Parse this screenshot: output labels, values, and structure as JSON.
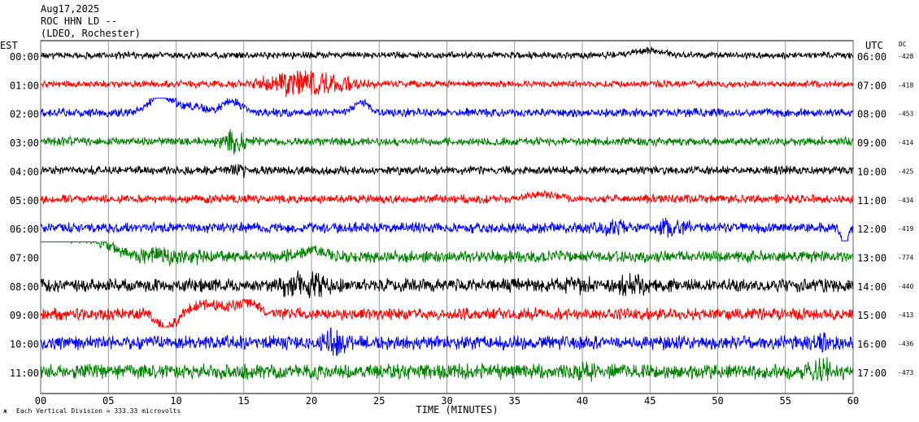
{
  "header": {
    "date": "Aug17,2025",
    "station": "ROC HHN LD --",
    "network": "(LDEO, Rochester)"
  },
  "left_zone": "EST",
  "right_zone": "UTC",
  "dc_header": "DC",
  "footer": {
    "scale_note": "Each Vertical Division =  333.33 microvolts",
    "corner_mark": "ж"
  },
  "chart_data": {
    "type": "line",
    "title": "",
    "xlabel": "TIME (MINUTES)",
    "ylabel": "",
    "xlim": [
      0,
      60
    ],
    "x_ticks": [
      "00",
      "05",
      "10",
      "15",
      "20",
      "25",
      "30",
      "35",
      "40",
      "45",
      "50",
      "55",
      "60"
    ],
    "grid": true,
    "colors": [
      "#000000",
      "#ff0000",
      "#0000ff",
      "#008000"
    ],
    "rows": [
      {
        "est": "00:00",
        "utc": "06:00",
        "dc": "-428",
        "color": "#000000",
        "noise": 4,
        "events": [
          {
            "t": 44.8,
            "amp": 6,
            "width": 1.5,
            "kind": "bump"
          }
        ]
      },
      {
        "est": "01:00",
        "utc": "07:00",
        "dc": "-418",
        "color": "#ff0000",
        "noise": 4,
        "events": [
          {
            "t": 19.5,
            "amp": 16,
            "width": 3.5,
            "kind": "burst"
          }
        ]
      },
      {
        "est": "02:00",
        "utc": "08:00",
        "dc": "-453",
        "color": "#0000ff",
        "noise": 5,
        "events": [
          {
            "t": 8.9,
            "amp": 22,
            "width": 1.2,
            "kind": "bump"
          },
          {
            "t": 11.2,
            "amp": 8,
            "width": 1.2,
            "kind": "bump"
          },
          {
            "t": 14.1,
            "amp": 14,
            "width": 1.0,
            "kind": "bump"
          },
          {
            "t": 23.7,
            "amp": 12,
            "width": 0.8,
            "kind": "bump"
          }
        ]
      },
      {
        "est": "03:00",
        "utc": "09:00",
        "dc": "-414",
        "color": "#008000",
        "noise": 5,
        "events": [
          {
            "t": 14.2,
            "amp": 14,
            "width": 1.0,
            "kind": "burst"
          }
        ]
      },
      {
        "est": "04:00",
        "utc": "10:00",
        "dc": "-425",
        "color": "#000000",
        "noise": 5,
        "events": [
          {
            "t": 14.5,
            "amp": 8,
            "width": 0.8,
            "kind": "burst"
          }
        ]
      },
      {
        "est": "05:00",
        "utc": "11:00",
        "dc": "-434",
        "color": "#ff0000",
        "noise": 5,
        "events": [
          {
            "t": 37.0,
            "amp": 6,
            "width": 1.5,
            "kind": "bump"
          }
        ]
      },
      {
        "est": "06:00",
        "utc": "12:00",
        "dc": "-419",
        "color": "#0000ff",
        "noise": 6,
        "events": [
          {
            "t": 42.0,
            "amp": 8,
            "width": 2.0,
            "kind": "burst"
          },
          {
            "t": 46.5,
            "amp": 10,
            "width": 1.2,
            "kind": "burst"
          },
          {
            "t": 59.4,
            "amp": -30,
            "width": 0.3,
            "kind": "bump"
          }
        ]
      },
      {
        "est": "07:00",
        "utc": "13:00",
        "dc": "-774",
        "color": "#008000",
        "noise": 7,
        "events": [
          {
            "t": 0.6,
            "amp": 28,
            "width": 0.8,
            "kind": "bump"
          },
          {
            "t": 2.6,
            "amp": 24,
            "width": 3.0,
            "kind": "bump"
          },
          {
            "t": 9.5,
            "amp": 8,
            "width": 2.5,
            "kind": "burst"
          },
          {
            "t": 20.0,
            "amp": 8,
            "width": 1.2,
            "kind": "bump"
          }
        ]
      },
      {
        "est": "08:00",
        "utc": "14:00",
        "dc": "-440",
        "color": "#000000",
        "noise": 8,
        "events": [
          {
            "t": 19.5,
            "amp": 14,
            "width": 2.2,
            "kind": "burst"
          },
          {
            "t": 39.5,
            "amp": 8,
            "width": 1.5,
            "kind": "burst"
          },
          {
            "t": 44.0,
            "amp": 12,
            "width": 1.2,
            "kind": "burst"
          }
        ]
      },
      {
        "est": "09:00",
        "utc": "15:00",
        "dc": "-413",
        "color": "#ff0000",
        "noise": 7,
        "events": [
          {
            "t": 9.3,
            "amp": -18,
            "width": 0.9,
            "kind": "bump"
          },
          {
            "t": 12.0,
            "amp": 12,
            "width": 1.3,
            "kind": "bump"
          },
          {
            "t": 15.0,
            "amp": 14,
            "width": 1.5,
            "kind": "bump"
          }
        ]
      },
      {
        "est": "10:00",
        "utc": "16:00",
        "dc": "-436",
        "color": "#0000ff",
        "noise": 8,
        "events": [
          {
            "t": 21.6,
            "amp": 20,
            "width": 0.8,
            "kind": "burst"
          },
          {
            "t": 57.8,
            "amp": 12,
            "width": 0.6,
            "kind": "burst"
          }
        ]
      },
      {
        "est": "11:00",
        "utc": "17:00",
        "dc": "-473",
        "color": "#008000",
        "noise": 9,
        "events": [
          {
            "t": 40.3,
            "amp": 10,
            "width": 0.6,
            "kind": "burst"
          },
          {
            "t": 57.5,
            "amp": 14,
            "width": 0.8,
            "kind": "burst"
          }
        ]
      }
    ]
  }
}
